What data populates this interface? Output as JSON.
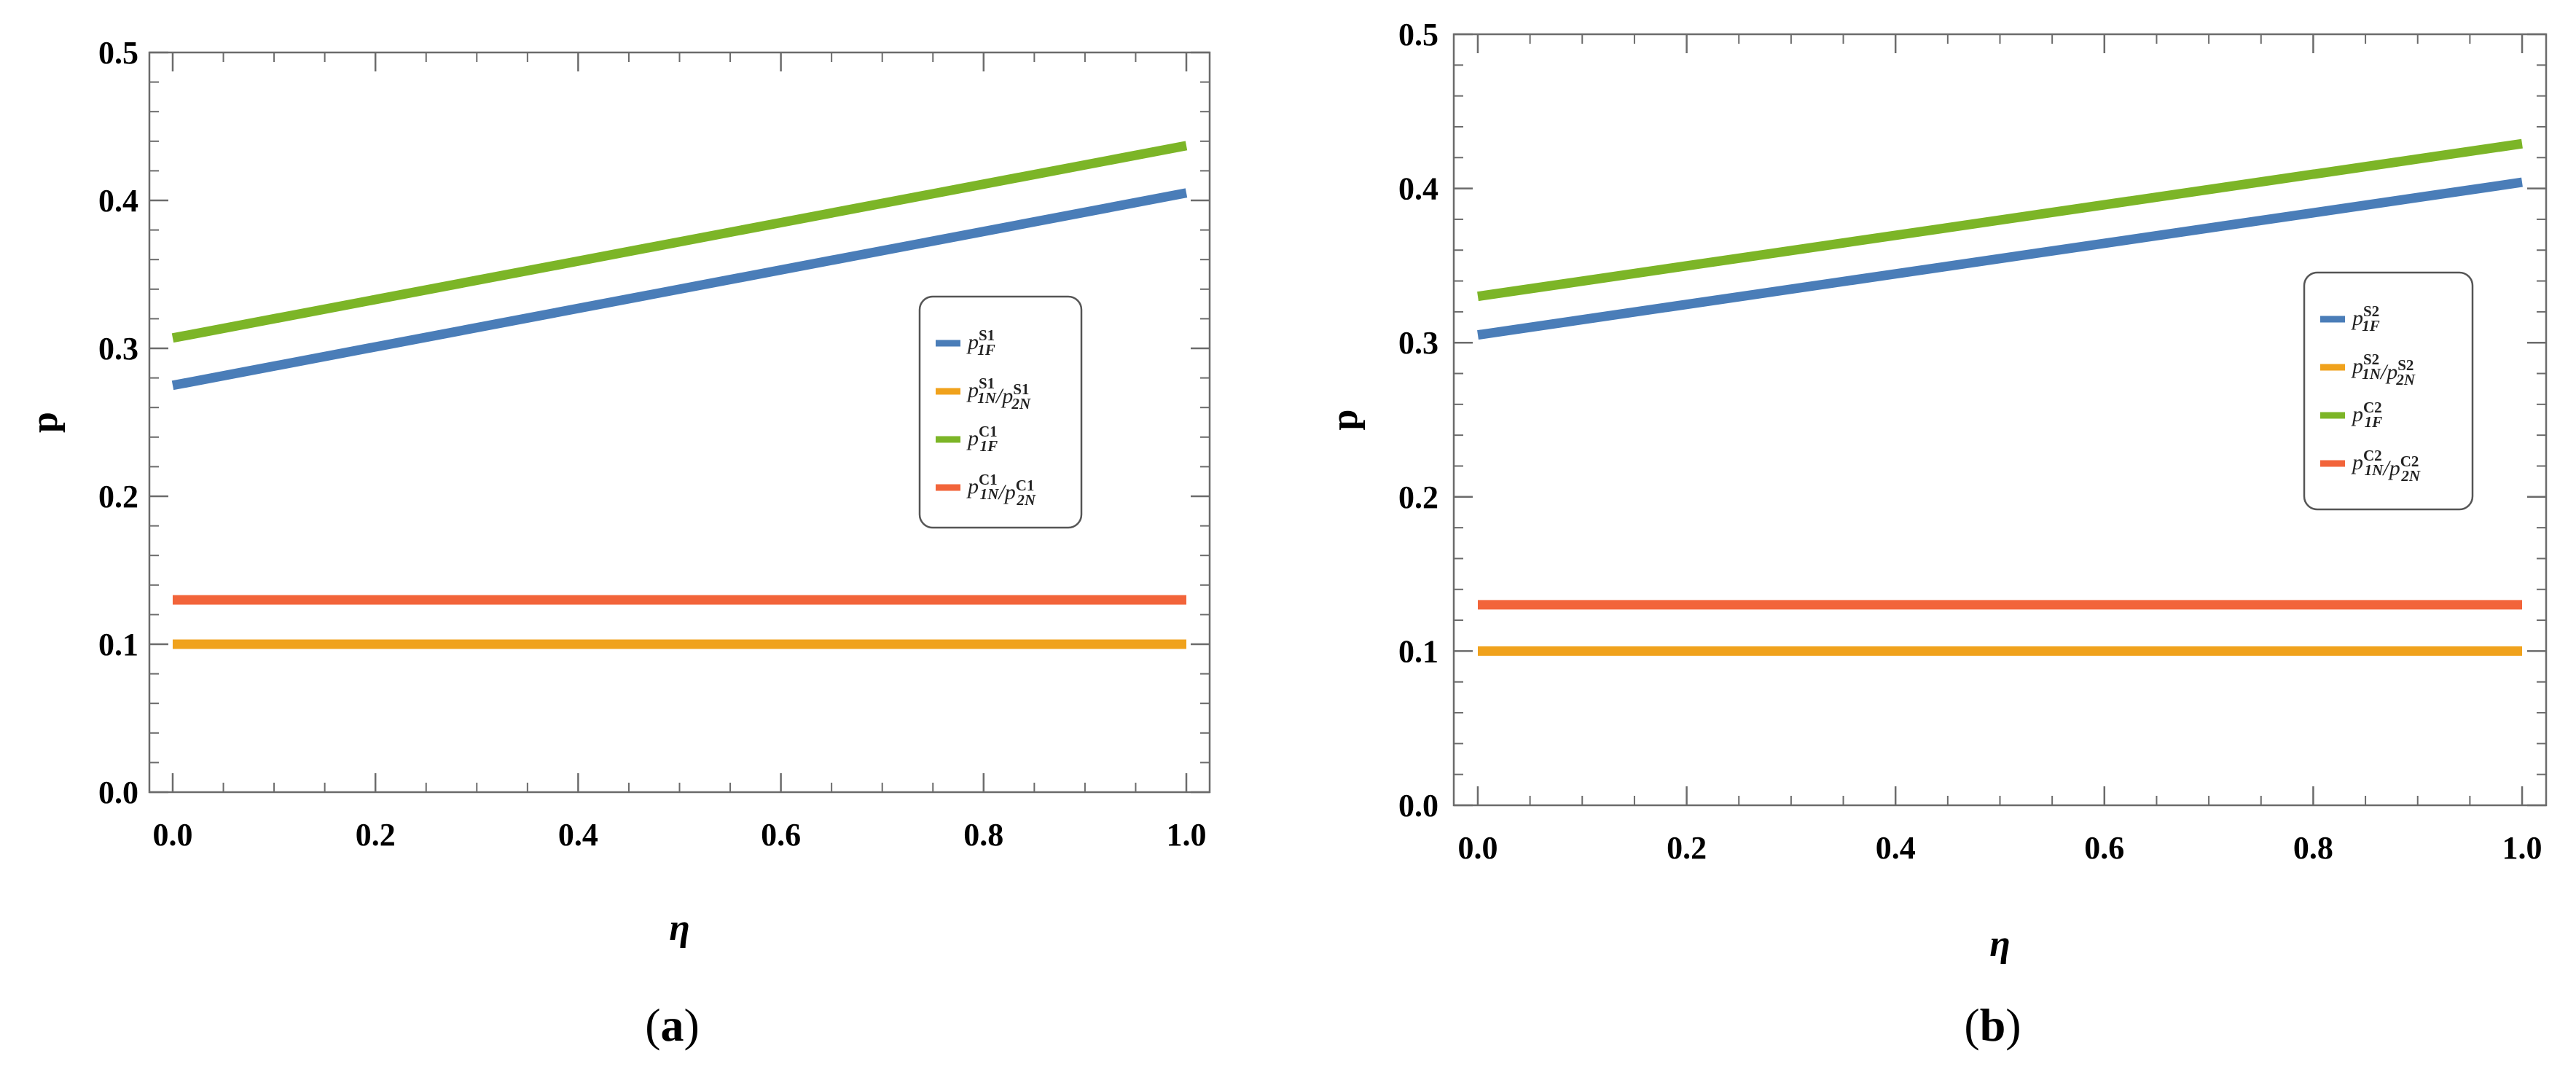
{
  "chart_data": [
    {
      "type": "line",
      "panel": "a",
      "caption": "a",
      "xlabel": "η",
      "ylabel": "p",
      "xlim": [
        0,
        1
      ],
      "ylim": [
        0,
        0.5
      ],
      "xticks": [
        "0.0",
        "0.2",
        "0.4",
        "0.6",
        "0.8",
        "1.0"
      ],
      "yticks": [
        "0.0",
        "0.1",
        "0.2",
        "0.3",
        "0.4",
        "0.5"
      ],
      "legend_position": "right",
      "x": [
        0,
        1
      ],
      "series": [
        {
          "name": "p1F S1",
          "sym": "p",
          "sup": "S1",
          "sub": "1F",
          "values": [
            0.275,
            0.405
          ],
          "color": "#4a7db8"
        },
        {
          "name": "p1N S1 / p2N S1",
          "sym": "p",
          "sup": "S1",
          "sub": "1N",
          "sym2": "p",
          "sup2": "S1",
          "sub2": "2N",
          "values": [
            0.1,
            0.1
          ],
          "color": "#f0a21c"
        },
        {
          "name": "p1F C1",
          "sym": "p",
          "sup": "C1",
          "sub": "1F",
          "values": [
            0.307,
            0.437
          ],
          "color": "#7cb527"
        },
        {
          "name": "p1N C1 / p2N C1",
          "sym": "p",
          "sup": "C1",
          "sub": "1N",
          "sym2": "p",
          "sup2": "C1",
          "sub2": "2N",
          "values": [
            0.13,
            0.13
          ],
          "color": "#f2643a"
        }
      ]
    },
    {
      "type": "line",
      "panel": "b",
      "caption": "b",
      "xlabel": "η",
      "ylabel": "p",
      "xlim": [
        0,
        1
      ],
      "ylim": [
        0,
        0.5
      ],
      "xticks": [
        "0.0",
        "0.2",
        "0.4",
        "0.6",
        "0.8",
        "1.0"
      ],
      "yticks": [
        "0.0",
        "0.1",
        "0.2",
        "0.3",
        "0.4",
        "0.5"
      ],
      "legend_position": "right",
      "x": [
        0,
        1
      ],
      "series": [
        {
          "name": "p1F S2",
          "sym": "p",
          "sup": "S2",
          "sub": "1F",
          "values": [
            0.305,
            0.404
          ],
          "color": "#4a7db8"
        },
        {
          "name": "p1N S2 / p2N S2",
          "sym": "p",
          "sup": "S2",
          "sub": "1N",
          "sym2": "p",
          "sup2": "S2",
          "sub2": "2N",
          "values": [
            0.1,
            0.1
          ],
          "color": "#f0a21c"
        },
        {
          "name": "p1F C2",
          "sym": "p",
          "sup": "C2",
          "sub": "1F",
          "values": [
            0.33,
            0.429
          ],
          "color": "#7cb527"
        },
        {
          "name": "p1N C2 / p2N C2",
          "sym": "p",
          "sup": "C2",
          "sub": "1N",
          "sym2": "p",
          "sup2": "C2",
          "sub2": "2N",
          "values": [
            0.13,
            0.13
          ],
          "color": "#f2643a"
        }
      ]
    }
  ]
}
